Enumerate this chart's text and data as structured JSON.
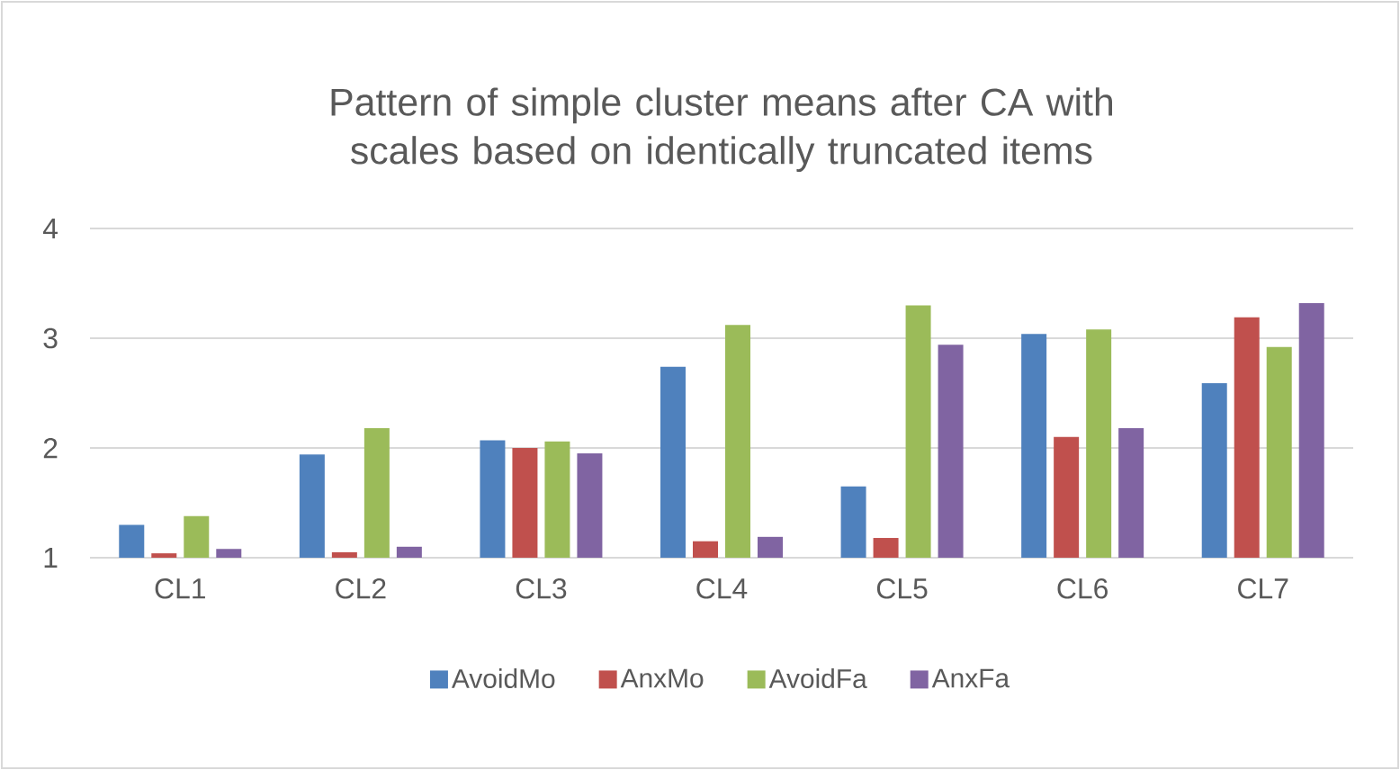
{
  "chart_data": {
    "type": "bar",
    "title": "Pattern of simple cluster means after CA with scales based on identically truncated items",
    "categories": [
      "CL1",
      "CL2",
      "CL3",
      "CL4",
      "CL5",
      "CL6",
      "CL7"
    ],
    "series": [
      {
        "name": "AvoidMo",
        "color": "#4f81bd",
        "values": [
          1.3,
          1.94,
          2.07,
          2.74,
          1.65,
          3.04,
          2.59
        ]
      },
      {
        "name": "AnxMo",
        "color": "#c0504d",
        "values": [
          1.04,
          1.05,
          2.0,
          1.15,
          1.18,
          2.1,
          3.19
        ]
      },
      {
        "name": "AvoidFa",
        "color": "#9bbb59",
        "values": [
          1.38,
          2.18,
          2.06,
          3.12,
          3.3,
          3.08,
          2.92
        ]
      },
      {
        "name": "AnxFa",
        "color": "#8064a2",
        "values": [
          1.08,
          1.1,
          1.95,
          1.19,
          2.94,
          2.18,
          3.32
        ]
      }
    ],
    "ylim": [
      1,
      4
    ],
    "yticks": [
      1,
      2,
      3,
      4
    ],
    "grid": "y",
    "legend": "bottom"
  }
}
